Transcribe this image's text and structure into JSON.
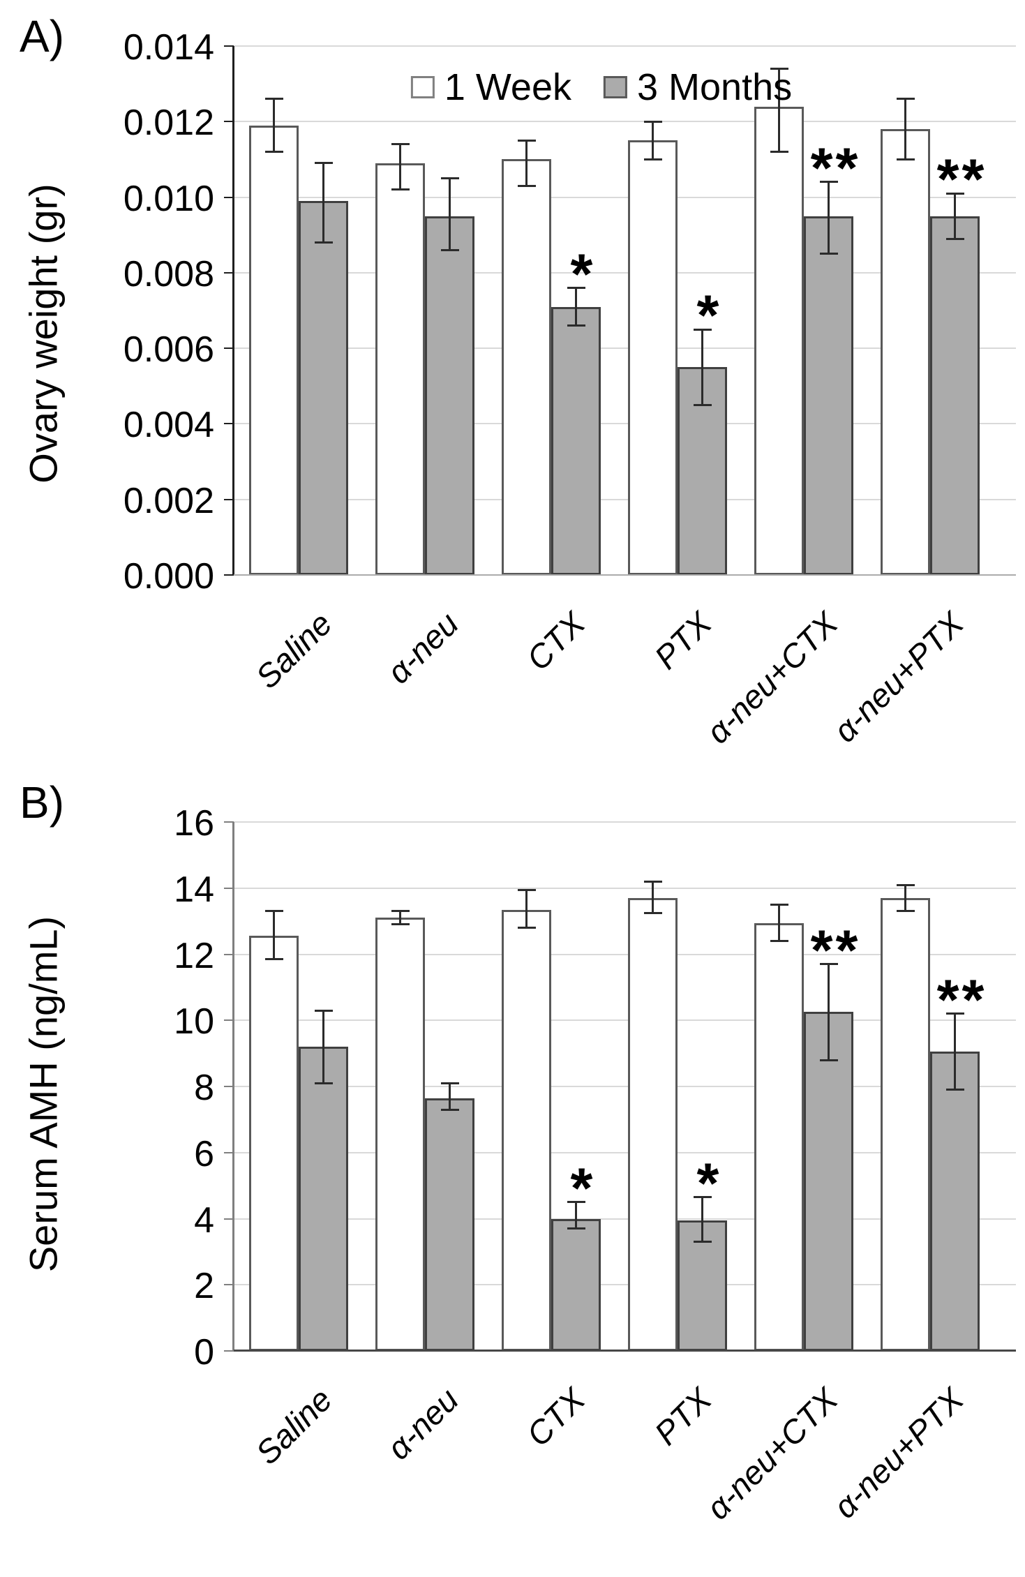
{
  "panels": [
    {
      "tag": "A)"
    },
    {
      "tag": "B)"
    }
  ],
  "legend": {
    "items": [
      {
        "label": "1 Week",
        "fill": "#ffffff",
        "border": "#808080"
      },
      {
        "label": "3 Months",
        "fill": "#ababab",
        "border": "#595959"
      }
    ]
  },
  "chart_data": [
    {
      "type": "bar",
      "panel": "A",
      "title": "",
      "xlabel": "",
      "ylabel": "Ovary weight (gr)",
      "ylim": [
        0,
        0.014
      ],
      "ytick_step": 0.002,
      "ytick_decimals": 3,
      "grid": true,
      "legend_position": "top-center",
      "show_legend": true,
      "categories": [
        "Saline",
        "α-neu",
        "CTX",
        "PTX",
        "α-neu+CTX",
        "α-neu+PTX"
      ],
      "series": [
        {
          "name": "1 Week",
          "values": [
            0.0119,
            0.0109,
            0.011,
            0.0115,
            0.0124,
            0.0118
          ],
          "err_lo": [
            0.0112,
            0.0102,
            0.0103,
            0.011,
            0.0112,
            0.011
          ],
          "err_hi": [
            0.0126,
            0.0114,
            0.0115,
            0.012,
            0.0134,
            0.0126
          ],
          "sig": [
            "",
            "",
            "",
            "",
            "",
            ""
          ]
        },
        {
          "name": "3 Months",
          "values": [
            0.0099,
            0.0095,
            0.0071,
            0.0055,
            0.0095,
            0.0095
          ],
          "err_lo": [
            0.0088,
            0.0086,
            0.0066,
            0.0045,
            0.0085,
            0.0089
          ],
          "err_hi": [
            0.0109,
            0.0105,
            0.0076,
            0.0065,
            0.0104,
            0.0101
          ],
          "sig": [
            "",
            "",
            "*",
            "*",
            "**",
            "**"
          ]
        }
      ]
    },
    {
      "type": "bar",
      "panel": "B",
      "title": "",
      "xlabel": "",
      "ylabel": "Serum AMH (ng/mL)",
      "ylim": [
        0,
        16
      ],
      "ytick_step": 2,
      "ytick_decimals": 0,
      "grid": true,
      "legend_position": "none",
      "show_legend": false,
      "categories": [
        "Saline",
        "α-neu",
        "CTX",
        "PTX",
        "α-neu+CTX",
        "α-neu+PTX"
      ],
      "series": [
        {
          "name": "1 Week",
          "values": [
            12.55,
            13.1,
            13.35,
            13.7,
            12.95,
            13.7
          ],
          "err_lo": [
            11.85,
            12.9,
            12.8,
            13.25,
            12.4,
            13.3
          ],
          "err_hi": [
            13.3,
            13.3,
            13.95,
            14.2,
            13.5,
            14.1
          ],
          "sig": [
            "",
            "",
            "",
            "",
            "",
            ""
          ]
        },
        {
          "name": "3 Months",
          "values": [
            9.2,
            7.65,
            4.0,
            3.95,
            10.25,
            9.05
          ],
          "err_lo": [
            8.1,
            7.3,
            3.7,
            3.3,
            8.8,
            7.9
          ],
          "err_hi": [
            10.3,
            8.1,
            4.5,
            4.65,
            11.7,
            10.2
          ],
          "sig": [
            "",
            "",
            "*",
            "*",
            "**",
            "**"
          ]
        }
      ]
    }
  ]
}
